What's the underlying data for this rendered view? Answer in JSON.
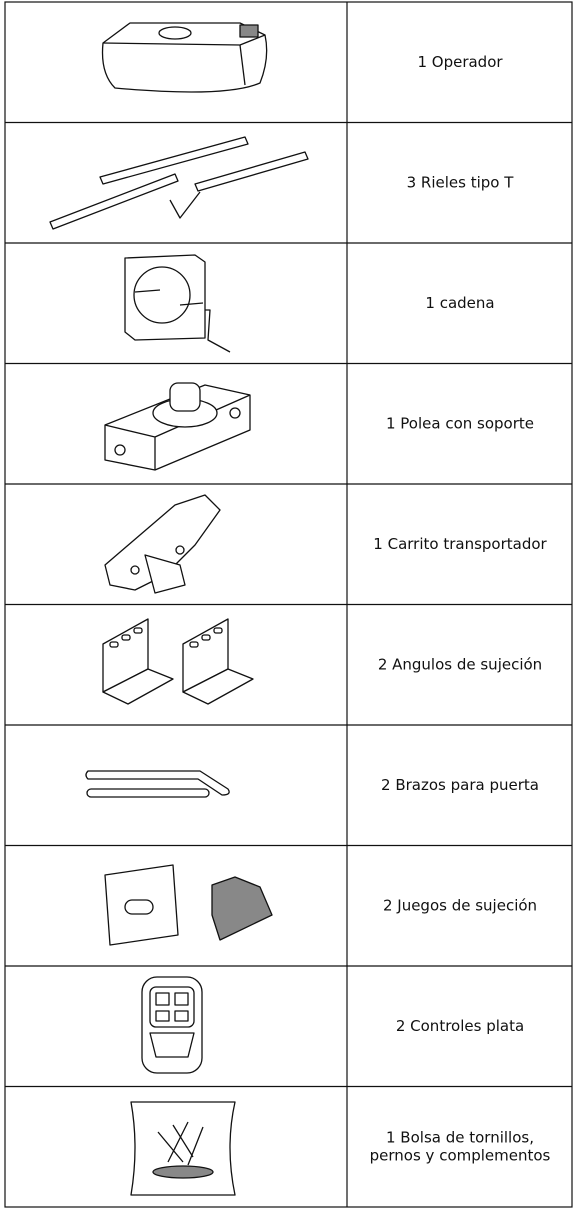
{
  "table": {
    "rows": [
      {
        "label": [
          "1 Operador"
        ]
      },
      {
        "label": [
          "3 Rieles tipo T"
        ]
      },
      {
        "label": [
          "1 cadena"
        ]
      },
      {
        "label": [
          "1 Polea con soporte"
        ]
      },
      {
        "label": [
          "1 Carrito transportador"
        ]
      },
      {
        "label": [
          "2 Angulos de sujeción"
        ]
      },
      {
        "label": [
          "2 Brazos para puerta"
        ]
      },
      {
        "label": [
          "2 Juegos de sujeción"
        ]
      },
      {
        "label": [
          "2 Controles plata"
        ]
      },
      {
        "label": [
          "1 Bolsa de tornillos,",
          "pernos y complementos"
        ]
      }
    ]
  }
}
